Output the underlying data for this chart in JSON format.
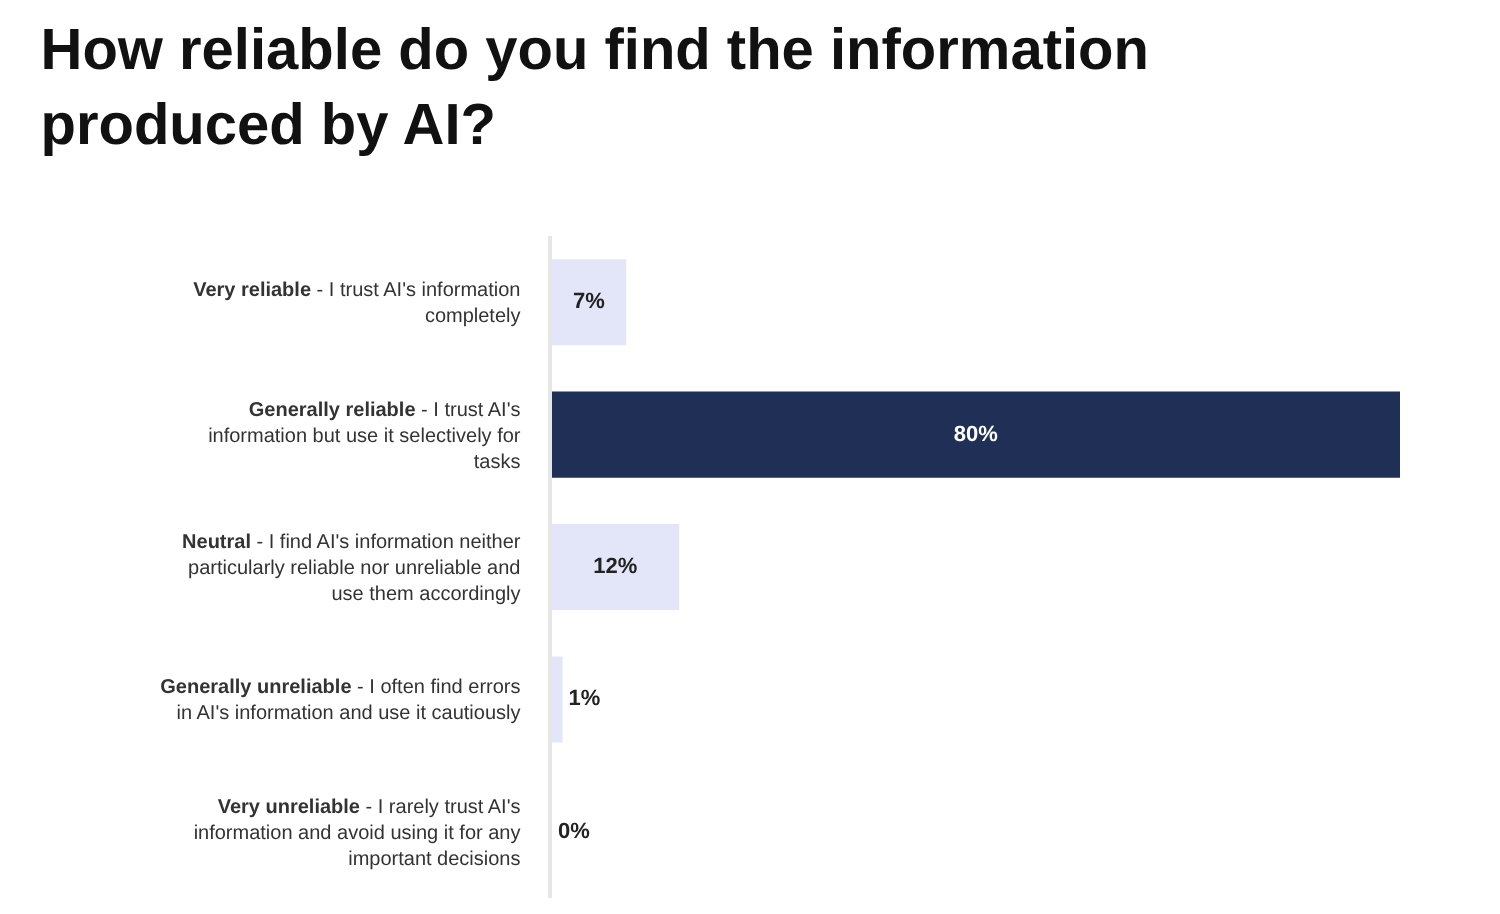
{
  "chart_data": {
    "type": "bar",
    "orientation": "horizontal",
    "title": "How reliable do you find the information produced by AI?",
    "categories": [
      "Very reliable - I trust AI's information completely",
      "Generally reliable - I trust AI's information but use it selectively for tasks",
      "Neutral - I find AI's information neither particularly reliable nor unreliable and use them accordingly",
      "Generally unreliable - I often find errors in AI's information and use it cautiously",
      "Very unreliable - I rarely trust AI's information and avoid using it for any important decisions"
    ],
    "values": [
      7,
      80,
      12,
      1,
      0
    ],
    "colors": [
      "#e3e6f8",
      "#1f2f55",
      "#e3e6f8",
      "#e3e6f8",
      "#e3e6f8"
    ],
    "value_labels": [
      "7%",
      "80%",
      "12%",
      "1%",
      "0%"
    ],
    "xlim": [
      0,
      80
    ],
    "tick_labels": "y"
  }
}
